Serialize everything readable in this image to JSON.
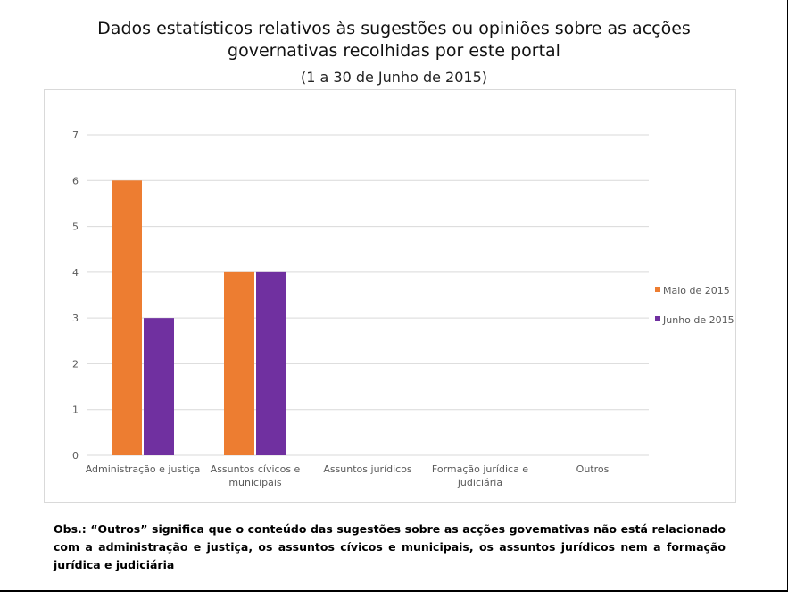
{
  "header": {
    "title_line1": "Dados estatísticos relativos às sugestões ou opiniões sobre as acções",
    "title_line2": "governativas recolhidas por este portal",
    "subtitle": "(1 a 30 de Junho de 2015)"
  },
  "note": "Obs.: “Outros” significa que o conteúdo das sugestões sobre as acções govemativas não está relacionado com a administração e justiça, os assuntos cívicos e municipais, os assuntos jurídicos nem a formação jurídica e judiciária",
  "colors": {
    "series_maio": "#ed7d31",
    "series_junho": "#7030a0",
    "gridline": "#d9d9d9",
    "tick_text": "#595959"
  },
  "chart_data": {
    "type": "bar",
    "title": "Dados estatísticos relativos às sugestões ou opiniões sobre as acções governativas recolhidas por este portal",
    "subtitle": "(1 a 30 de Junho de 2015)",
    "categories": [
      [
        "Administração e justiça"
      ],
      [
        "Assuntos cívicos e",
        "municipais"
      ],
      [
        "Assuntos jurídicos"
      ],
      [
        "Formação jurídica e",
        "judiciária"
      ],
      [
        "Outros"
      ]
    ],
    "series": [
      {
        "name": "Maio de 2015",
        "values": [
          6,
          4,
          0,
          0,
          0
        ],
        "color": "#ed7d31"
      },
      {
        "name": "Junho de 2015",
        "values": [
          3,
          4,
          0,
          0,
          0
        ],
        "color": "#7030a0"
      }
    ],
    "ylim": [
      0,
      7
    ],
    "yticks": [
      0,
      1,
      2,
      3,
      4,
      5,
      6,
      7
    ],
    "xlabel": "",
    "ylabel": "",
    "grid": true,
    "legend_position": "right"
  }
}
